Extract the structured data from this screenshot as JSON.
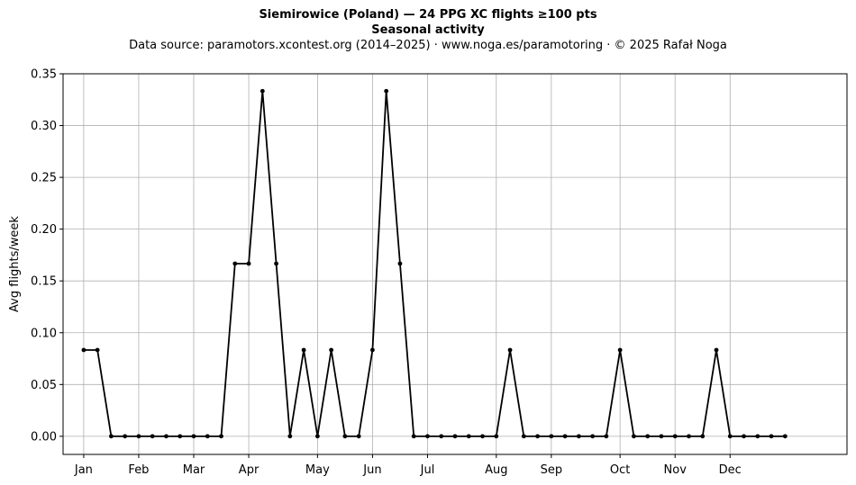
{
  "chart_data": {
    "type": "line",
    "title": "Siemirowice (Poland)  —  24 PPG XC flights ≥100 pts",
    "subtitle": "Seasonal activity",
    "source_note": "Data source: paramotors.xcontest.org (2014–2025)  ·  www.noga.es/paramotoring  ·  © 2025 Rafał Noga",
    "xlabel": "",
    "ylabel": "Avg flights/week",
    "x_unit": "week of year",
    "xlim": [
      -1.5,
      55.5
    ],
    "ylim": [
      -0.0175,
      0.35
    ],
    "yticks": [
      0.0,
      0.05,
      0.1,
      0.15,
      0.2,
      0.25,
      0.3,
      0.35
    ],
    "ytick_labels": [
      "0.00",
      "0.05",
      "0.10",
      "0.15",
      "0.20",
      "0.25",
      "0.30",
      "0.35"
    ],
    "xticks": [
      {
        "label": "Jan",
        "week": 0
      },
      {
        "label": "Feb",
        "week": 4
      },
      {
        "label": "Mar",
        "week": 8
      },
      {
        "label": "Apr",
        "week": 12
      },
      {
        "label": "May",
        "week": 17
      },
      {
        "label": "Jun",
        "week": 21
      },
      {
        "label": "Jul",
        "week": 25
      },
      {
        "label": "Aug",
        "week": 30
      },
      {
        "label": "Sep",
        "week": 34
      },
      {
        "label": "Oct",
        "week": 39
      },
      {
        "label": "Nov",
        "week": 43
      },
      {
        "label": "Dec",
        "week": 47
      }
    ],
    "grid": true,
    "series": [
      {
        "color": "#000000",
        "x": [
          0,
          1,
          2,
          3,
          4,
          5,
          6,
          7,
          8,
          9,
          10,
          11,
          12,
          13,
          14,
          15,
          16,
          17,
          18,
          19,
          20,
          21,
          22,
          23,
          24,
          25,
          26,
          27,
          28,
          29,
          30,
          31,
          32,
          33,
          34,
          35,
          36,
          37,
          38,
          39,
          40,
          41,
          42,
          43,
          44,
          45,
          46,
          47,
          48,
          49,
          50,
          51
        ],
        "values": [
          0.0833,
          0.0833,
          0,
          0,
          0,
          0,
          0,
          0,
          0,
          0,
          0,
          0.1667,
          0.1667,
          0.3333,
          0.1667,
          0,
          0.0833,
          0,
          0.0833,
          0,
          0,
          0.0833,
          0.3333,
          0.1667,
          0,
          0,
          0,
          0,
          0,
          0,
          0,
          0.0833,
          0,
          0,
          0,
          0,
          0,
          0,
          0,
          0.0833,
          0,
          0,
          0,
          0,
          0,
          0,
          0.0833,
          0,
          0,
          0,
          0,
          0
        ]
      }
    ]
  }
}
